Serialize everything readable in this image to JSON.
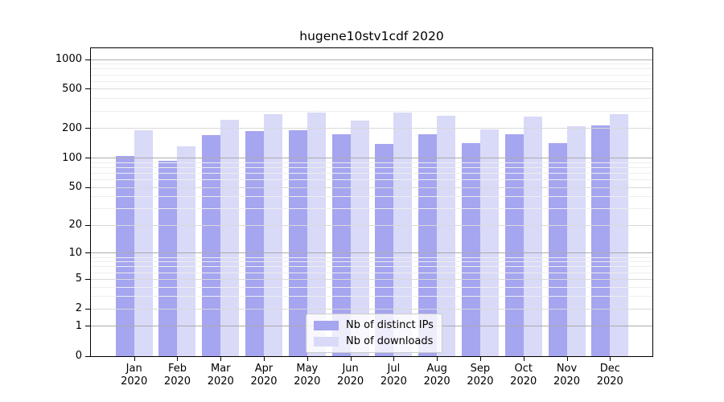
{
  "title": "hugene10stv1cdf 2020",
  "y_axis": {
    "tick_labels": [
      "0",
      "1",
      "2",
      "5",
      "10",
      "20",
      "50",
      "100",
      "200",
      "500",
      "1000"
    ]
  },
  "x_axis": {
    "year": "2020",
    "months": [
      "Jan",
      "Feb",
      "Mar",
      "Apr",
      "May",
      "Jun",
      "Jul",
      "Aug",
      "Sep",
      "Oct",
      "Nov",
      "Dec"
    ]
  },
  "legend": {
    "items": [
      {
        "label": "Nb of distinct IPs",
        "color": "#a5a5f0"
      },
      {
        "label": "Nb of downloads",
        "color": "#d9d9f8"
      }
    ]
  },
  "chart_data": {
    "type": "bar",
    "title": "hugene10stv1cdf 2020",
    "categories": [
      "Jan 2020",
      "Feb 2020",
      "Mar 2020",
      "Apr 2020",
      "May 2020",
      "Jun 2020",
      "Jul 2020",
      "Aug 2020",
      "Sep 2020",
      "Oct 2020",
      "Nov 2020",
      "Dec 2020"
    ],
    "series": [
      {
        "name": "Nb of distinct IPs",
        "color": "#a5a5f0",
        "values": [
          105,
          94,
          171,
          189,
          190,
          176,
          138,
          173,
          142,
          174,
          143,
          215
        ]
      },
      {
        "name": "Nb of downloads",
        "color": "#d9d9f8",
        "values": [
          192,
          131,
          245,
          280,
          288,
          240,
          291,
          270,
          197,
          264,
          212,
          280
        ]
      }
    ],
    "xlabel": "",
    "ylabel": "",
    "y_scale": "log1p (symlog-like: 0,1,2,5,10,20,50,100,200,500,1000)",
    "yticks": [
      0,
      1,
      2,
      5,
      10,
      20,
      50,
      100,
      200,
      500,
      1000
    ],
    "ylim": [
      0,
      1300
    ],
    "grid": true,
    "grid_minor_ticks": [
      3,
      4,
      6,
      7,
      8,
      9,
      30,
      40,
      60,
      70,
      80,
      90,
      300,
      400,
      600,
      700,
      800,
      900
    ],
    "legend_position": "lower center",
    "bar_layout": "paired, distinct-IPs bar left of month tick, downloads bar right"
  }
}
